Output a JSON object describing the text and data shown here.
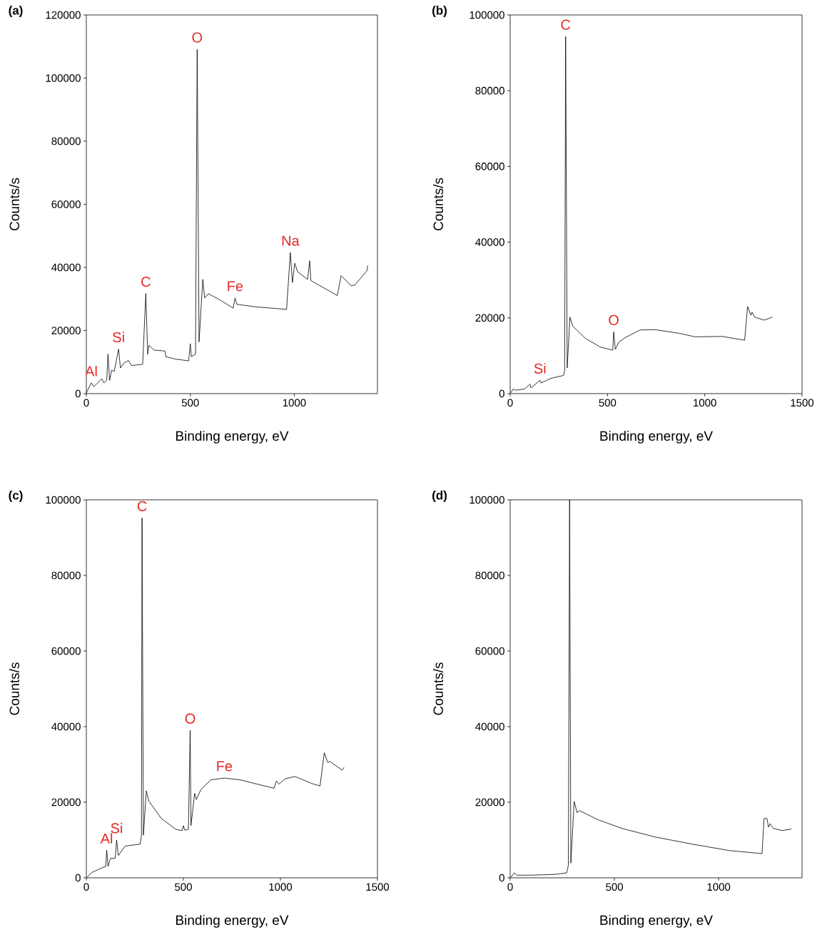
{
  "chart_data": [
    {
      "type": "line",
      "title": "(a)",
      "xlabel": "Binding energy, eV",
      "ylabel": "Counts/s",
      "color": "#000000",
      "xlim": [
        0,
        1400
      ],
      "ylim": [
        0,
        120000
      ],
      "xticks": [
        0,
        500,
        1000
      ],
      "yticks": [
        0,
        20000,
        40000,
        60000,
        80000,
        100000,
        120000
      ],
      "x": [
        0,
        24,
        36,
        74,
        84,
        98,
        104,
        112,
        122,
        134,
        155,
        164,
        181,
        203,
        217,
        271,
        286,
        295,
        301,
        325,
        378,
        382,
        432,
        492,
        500,
        505,
        525,
        533,
        542,
        560,
        569,
        587,
        647,
        706,
        715,
        724,
        814,
        963,
        981,
        991,
        1002,
        1016,
        1064,
        1074,
        1080,
        1207,
        1225,
        1273,
        1291,
        1350,
        1353
      ],
      "values": [
        200,
        3400,
        2200,
        4700,
        3400,
        4200,
        12500,
        4200,
        7500,
        7000,
        14100,
        8100,
        9700,
        10500,
        8900,
        9300,
        31700,
        12500,
        15300,
        13800,
        13500,
        11700,
        10900,
        10400,
        15800,
        11700,
        12500,
        109100,
        16400,
        36200,
        30300,
        31700,
        29500,
        27100,
        30300,
        28300,
        27500,
        26700,
        44700,
        35200,
        41300,
        38600,
        36200,
        42100,
        35800,
        31100,
        37400,
        34200,
        34400,
        39000,
        40600
      ],
      "annotations": [
        {
          "text": "O",
          "x": 533,
          "y": 109100
        },
        {
          "text": "Na",
          "x": 981,
          "y": 44700
        },
        {
          "text": "C",
          "x": 286,
          "y": 31700
        },
        {
          "text": "Fe",
          "x": 715,
          "y": 30300
        },
        {
          "text": "Si",
          "x": 155,
          "y": 14100
        },
        {
          "text": "Al",
          "x": 24,
          "y": 3400
        }
      ]
    },
    {
      "type": "line",
      "title": "(b)",
      "xlabel": "Binding energy, eV",
      "ylabel": "Counts/s",
      "color": "#000000",
      "xlim": [
        0,
        1500
      ],
      "ylim": [
        0,
        100000
      ],
      "xticks": [
        0,
        500,
        1000,
        1500
      ],
      "yticks": [
        0,
        20000,
        40000,
        60000,
        80000,
        100000
      ],
      "x": [
        3,
        15,
        28,
        73,
        102,
        107,
        153,
        159,
        207,
        274,
        280,
        285,
        293,
        307,
        322,
        386,
        463,
        527,
        532,
        540,
        559,
        591,
        668,
        744,
        872,
        949,
        1090,
        1205,
        1220,
        1237,
        1243,
        1256,
        1307,
        1348
      ],
      "values": [
        200,
        1200,
        900,
        1200,
        2500,
        1500,
        3500,
        2800,
        4000,
        4800,
        6100,
        94300,
        6800,
        20200,
        17800,
        14600,
        12300,
        11500,
        16300,
        11700,
        13600,
        14800,
        16800,
        16900,
        15900,
        15000,
        15100,
        14100,
        23000,
        20700,
        21500,
        20200,
        19400,
        20200
      ],
      "annotations": [
        {
          "text": "C",
          "x": 285,
          "y": 94300
        },
        {
          "text": "O",
          "x": 532,
          "y": 16300
        },
        {
          "text": "Si",
          "x": 153,
          "y": 3500
        }
      ]
    },
    {
      "type": "line",
      "title": "(c)",
      "xlabel": "Binding energy, eV",
      "ylabel": "Counts/s",
      "color": "#000000",
      "xlim": [
        0,
        1500
      ],
      "ylim": [
        0,
        100000
      ],
      "xticks": [
        0,
        500,
        1000,
        1500
      ],
      "yticks": [
        0,
        20000,
        40000,
        60000,
        80000,
        100000
      ],
      "x": [
        3,
        28,
        79,
        100,
        105,
        112,
        124,
        149,
        156,
        165,
        200,
        277,
        284,
        287,
        294,
        309,
        322,
        386,
        462,
        494,
        500,
        507,
        526,
        535,
        539,
        558,
        567,
        590,
        641,
        711,
        794,
        871,
        967,
        979,
        992,
        1024,
        1075,
        1165,
        1204,
        1226,
        1244,
        1254,
        1318,
        1328
      ],
      "values": [
        100,
        1400,
        2600,
        3000,
        7300,
        3000,
        5100,
        5200,
        10000,
        5900,
        8400,
        8900,
        11100,
        95200,
        11300,
        23000,
        20300,
        15700,
        12800,
        12500,
        13800,
        12600,
        12800,
        39000,
        13800,
        22300,
        20700,
        23300,
        25900,
        26400,
        25900,
        24900,
        23700,
        25600,
        24800,
        26200,
        26800,
        24900,
        24300,
        33100,
        30500,
        30800,
        28500,
        29200
      ],
      "annotations": [
        {
          "text": "C",
          "x": 287,
          "y": 95200
        },
        {
          "text": "O",
          "x": 535,
          "y": 39000
        },
        {
          "text": "Fe",
          "x": 711,
          "y": 26400
        },
        {
          "text": "Si",
          "x": 156,
          "y": 10000
        },
        {
          "text": "Al",
          "x": 105,
          "y": 7300
        }
      ]
    },
    {
      "type": "line",
      "title": "(d)",
      "xlabel": "Binding energy, eV",
      "ylabel": "Counts/s",
      "color": "#000000",
      "xlim": [
        0,
        1400
      ],
      "ylim": [
        0,
        100000
      ],
      "xticks": [
        0,
        500,
        1000
      ],
      "yticks": [
        0,
        20000,
        40000,
        60000,
        80000,
        100000
      ],
      "x": [
        2,
        20,
        32,
        98,
        217,
        271,
        279,
        285,
        291,
        307,
        321,
        331,
        420,
        534,
        695,
        874,
        1053,
        1208,
        1218,
        1232,
        1239,
        1247,
        1262,
        1304,
        1349
      ],
      "values": [
        100,
        1300,
        700,
        700,
        900,
        1300,
        3300,
        100000,
        3900,
        20200,
        17200,
        17800,
        15400,
        13100,
        10800,
        8900,
        7200,
        6400,
        15700,
        15700,
        13400,
        14300,
        13100,
        12500,
        12900
      ]
    }
  ]
}
